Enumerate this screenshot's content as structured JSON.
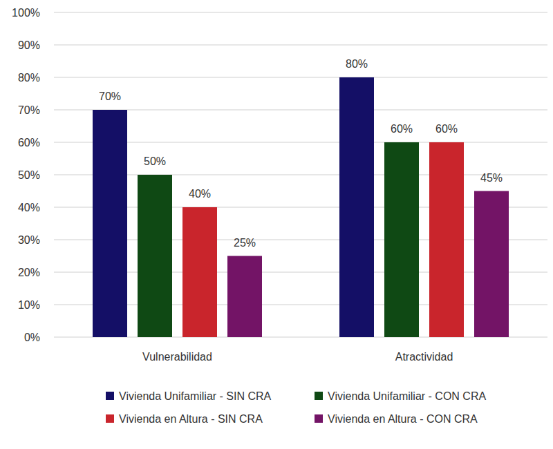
{
  "chart_data": {
    "type": "bar",
    "categories": [
      "Vulnerabilidad",
      "Atractividad"
    ],
    "series": [
      {
        "name": "Vivienda Unifamiliar - SIN CRA",
        "color": "#140f66",
        "values": [
          70,
          80
        ],
        "value_labels": [
          "70%",
          "80%"
        ]
      },
      {
        "name": "Vivienda Unifamiliar - CON CRA",
        "color": "#0f4914",
        "values": [
          50,
          60
        ],
        "value_labels": [
          "50%",
          "60%"
        ]
      },
      {
        "name": "Vivienda en Altura - SIN CRA",
        "color": "#c9252c",
        "values": [
          40,
          60
        ],
        "value_labels": [
          "40%",
          "60%"
        ]
      },
      {
        "name": "Vivienda en Altura - CON CRA",
        "color": "#731466",
        "values": [
          25,
          45
        ],
        "value_labels": [
          "25%",
          "45%"
        ]
      }
    ],
    "ylim": [
      0,
      100
    ],
    "yticks": [
      {
        "value": 0,
        "label": "0%"
      },
      {
        "value": 10,
        "label": "10%"
      },
      {
        "value": 20,
        "label": "20%"
      },
      {
        "value": 30,
        "label": "30%"
      },
      {
        "value": 40,
        "label": "40%"
      },
      {
        "value": 50,
        "label": "50%"
      },
      {
        "value": 60,
        "label": "60%"
      },
      {
        "value": 70,
        "label": "70%"
      },
      {
        "value": 80,
        "label": "80%"
      },
      {
        "value": 90,
        "label": "90%"
      },
      {
        "value": 100,
        "label": "100%"
      }
    ],
    "grid": true,
    "data_labels": true,
    "legend": "bottom"
  }
}
